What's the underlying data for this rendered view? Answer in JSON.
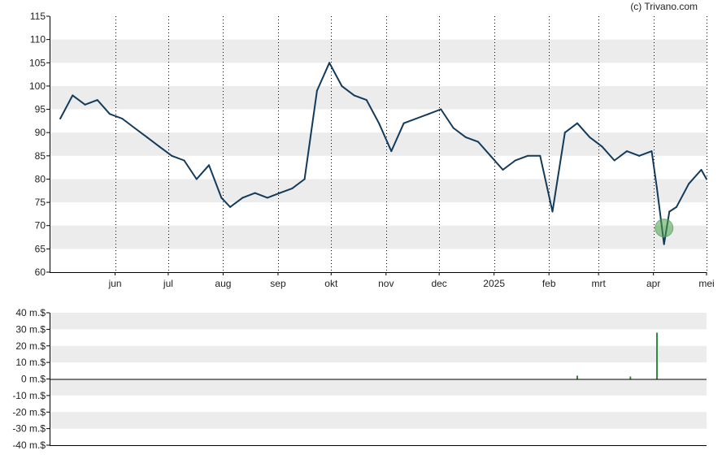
{
  "copyright": "(c) Trivano.com",
  "colors": {
    "price_line": "#123a5a",
    "band": "#ececec",
    "axis": "#000000",
    "grid": "#000000",
    "volume_bar": "#2e8b3e",
    "marker": "#4aa04a"
  },
  "chart_data": [
    {
      "type": "line",
      "name": "price",
      "y_ticks": [
        60,
        65,
        70,
        75,
        80,
        85,
        90,
        95,
        100,
        105,
        110,
        115
      ],
      "ylim": [
        60,
        115
      ],
      "x_tick_labels": [
        "jun",
        "jul",
        "aug",
        "sep",
        "okt",
        "nov",
        "dec",
        "2025",
        "feb",
        "mrt",
        "apr",
        "mei"
      ],
      "grid": "vertical dotted at month ticks, alternating horizontal bands",
      "x": [
        "2024-05-01",
        "2024-05-08",
        "2024-05-15",
        "2024-05-22",
        "2024-05-29",
        "2024-06-05",
        "2024-06-12",
        "2024-06-19",
        "2024-06-26",
        "2024-07-03",
        "2024-07-10",
        "2024-07-17",
        "2024-07-24",
        "2024-07-31",
        "2024-08-05",
        "2024-08-12",
        "2024-08-19",
        "2024-08-26",
        "2024-09-02",
        "2024-09-09",
        "2024-09-16",
        "2024-09-23",
        "2024-09-30",
        "2024-10-07",
        "2024-10-14",
        "2024-10-21",
        "2024-10-28",
        "2024-11-04",
        "2024-11-11",
        "2024-11-18",
        "2024-11-25",
        "2024-12-02",
        "2024-12-09",
        "2024-12-16",
        "2024-12-23",
        "2024-12-30",
        "2025-01-06",
        "2025-01-13",
        "2025-01-20",
        "2025-01-27",
        "2025-02-03",
        "2025-02-10",
        "2025-02-17",
        "2025-02-24",
        "2025-03-03",
        "2025-03-10",
        "2025-03-17",
        "2025-03-24",
        "2025-03-31",
        "2025-04-03",
        "2025-04-07",
        "2025-04-10",
        "2025-04-14",
        "2025-04-21",
        "2025-04-28",
        "2025-05-01"
      ],
      "values": [
        93,
        98,
        96,
        97,
        94,
        93,
        91,
        89,
        87,
        85,
        84,
        80,
        83,
        76,
        74,
        76,
        77,
        76,
        77,
        78,
        80,
        99,
        105,
        100,
        98,
        97,
        92,
        86,
        92,
        93,
        94,
        95,
        91,
        89,
        88,
        85,
        82,
        84,
        85,
        85,
        73,
        90,
        92,
        89,
        87,
        84,
        86,
        85,
        86,
        78,
        66,
        73,
        74,
        79,
        82,
        80
      ]
    },
    {
      "type": "bar",
      "name": "volume",
      "y_ticks": [
        "40 m.$",
        "30 m.$",
        "20 m.$",
        "10 m.$",
        "0 m.$",
        "-10 m.$",
        "-20 m.$",
        "-30 m.$",
        "-40 m.$"
      ],
      "ylim": [
        -40,
        40
      ],
      "x": [
        "2025-02-17",
        "2025-03-19",
        "2025-04-03"
      ],
      "values": [
        2,
        1.5,
        28
      ]
    }
  ],
  "marker": {
    "x": "2025-04-07",
    "y": 69.5
  }
}
